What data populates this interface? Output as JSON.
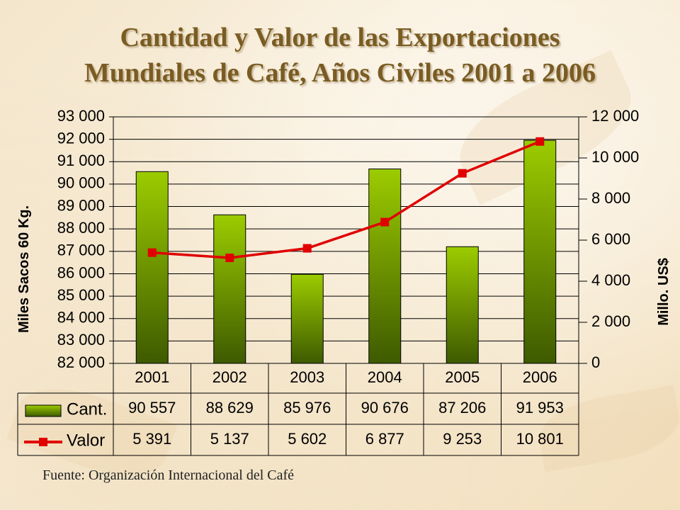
{
  "title_line1": "Cantidad y Valor de las Exportaciones",
  "title_line2": "Mundiales de Café, Años Civiles 2001 a 2006",
  "footer": "Fuente: Organización Internacional del Café",
  "chart_data": {
    "type": "bar",
    "categories": [
      "2001",
      "2002",
      "2003",
      "2004",
      "2005",
      "2006"
    ],
    "series": [
      {
        "name": "Cant.",
        "type": "bar",
        "axis": "left",
        "values": [
          90557,
          88629,
          85976,
          90676,
          87206,
          91953
        ]
      },
      {
        "name": "Valor",
        "type": "line",
        "axis": "right",
        "values": [
          5391,
          5137,
          5602,
          6877,
          9253,
          10801
        ]
      }
    ],
    "table_values": {
      "Cant.": [
        "90 557",
        "88 629",
        "85 976",
        "90 676",
        "87 206",
        "91 953"
      ],
      "Valor": [
        "5 391",
        "5 137",
        "5 602",
        "6 877",
        "9 253",
        "10 801"
      ]
    },
    "y_left": {
      "label": "Miles Sacos 60 Kg.",
      "ylim": [
        82000,
        93000
      ],
      "ticks": [
        "93 000",
        "92 000",
        "91 000",
        "90 000",
        "89 000",
        "88 000",
        "87 000",
        "86 000",
        "85 000",
        "84 000",
        "83 000",
        "82 000"
      ]
    },
    "y_right": {
      "label": "Millo. US$",
      "ylim": [
        0,
        12000
      ],
      "ticks": [
        "12 000",
        "10 000",
        "8 000",
        "6 000",
        "4 000",
        "2 000",
        "0"
      ]
    },
    "grid": true,
    "legend": "data-table",
    "colors": {
      "bar_top": "#9ccc00",
      "bar_bottom": "#3e5a00",
      "line": "#e00000"
    }
  }
}
